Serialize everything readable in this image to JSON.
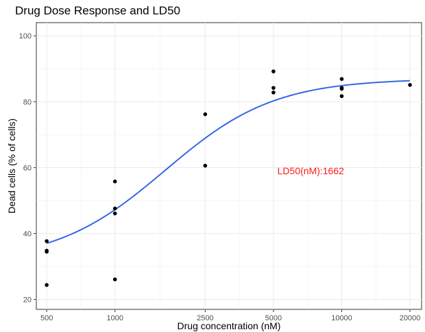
{
  "chart_data": {
    "type": "scatter",
    "title": "Drug Dose Response and LD50",
    "xlabel": "Drug concentration (nM)",
    "ylabel": "Dead cells (% of cells)",
    "x_scale": "log",
    "xlim": [
      450,
      22500
    ],
    "ylim": [
      17,
      104
    ],
    "x_ticks": [
      500,
      1000,
      2500,
      5000,
      10000,
      20000
    ],
    "x_tick_labels": [
      "500",
      "1000",
      "2500",
      "5000",
      "10000",
      "20000"
    ],
    "x_minor_ticks": [
      707,
      1581,
      3536,
      7071,
      14142
    ],
    "y_ticks": [
      20,
      40,
      60,
      80,
      100
    ],
    "y_tick_labels": [
      "20",
      "40",
      "60",
      "80",
      "100"
    ],
    "y_minor_ticks": [
      30,
      50,
      70,
      90
    ],
    "grid": true,
    "points": [
      {
        "x": 500,
        "y": 37.7
      },
      {
        "x": 500,
        "y": 34.8
      },
      {
        "x": 500,
        "y": 34.5
      },
      {
        "x": 500,
        "y": 24.4
      },
      {
        "x": 1000,
        "y": 55.8
      },
      {
        "x": 1000,
        "y": 47.6
      },
      {
        "x": 1000,
        "y": 46.1
      },
      {
        "x": 1000,
        "y": 26.1
      },
      {
        "x": 2500,
        "y": 76.2
      },
      {
        "x": 2500,
        "y": 60.6
      },
      {
        "x": 5000,
        "y": 89.2
      },
      {
        "x": 5000,
        "y": 84.2
      },
      {
        "x": 5000,
        "y": 82.8
      },
      {
        "x": 10000,
        "y": 86.9
      },
      {
        "x": 10000,
        "y": 84.2
      },
      {
        "x": 10000,
        "y": 83.9
      },
      {
        "x": 10000,
        "y": 81.7
      },
      {
        "x": 20000,
        "y": 85.1
      }
    ],
    "fit_curve": {
      "model": "4-parameter logistic",
      "bottom": 31.3,
      "top": 87.0,
      "ec50": 1662,
      "hill": 1.8,
      "color": "#3366e6"
    },
    "annotation": {
      "text": "LD50(nM):1662",
      "x": 7300,
      "y": 59,
      "color": "#ff1a1a"
    },
    "point_color": "#000000"
  }
}
